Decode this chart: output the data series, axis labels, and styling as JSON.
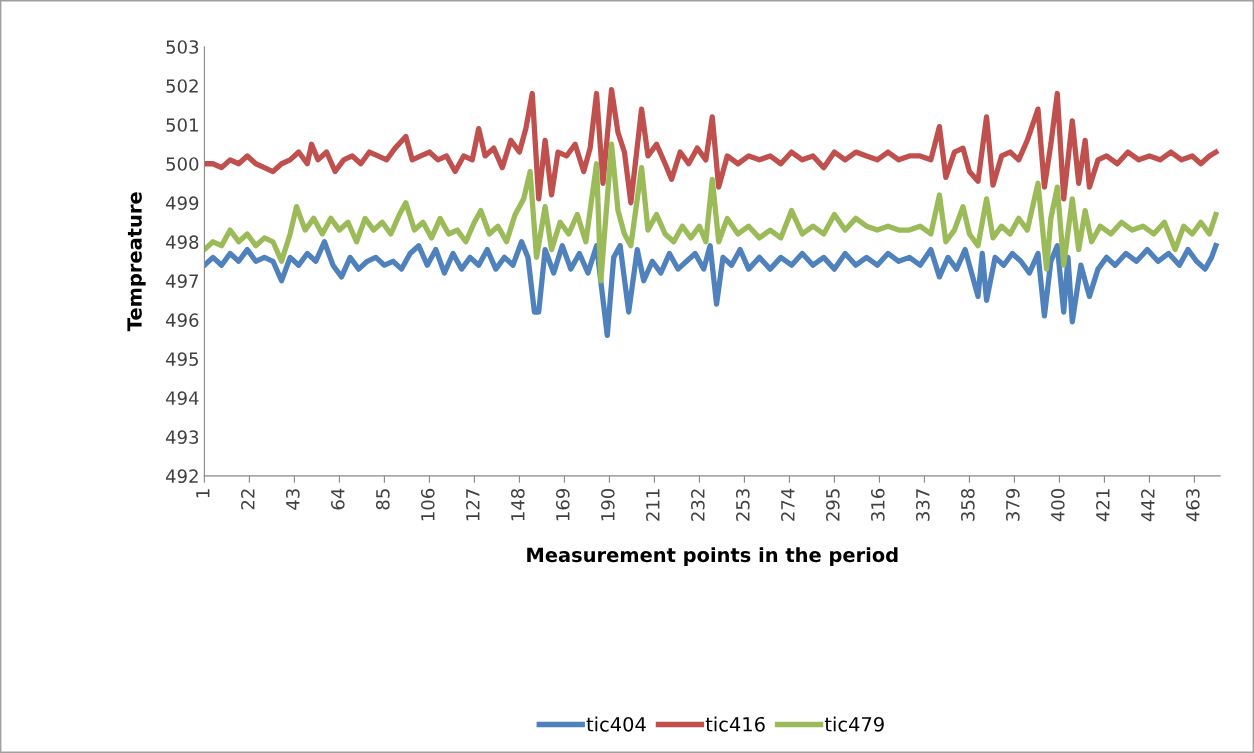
{
  "chart_data": {
    "type": "line",
    "xlabel": "Measurement points in the period",
    "ylabel": "Tempreature",
    "xlim": [
      1,
      475
    ],
    "xticks": [
      1,
      22,
      43,
      64,
      85,
      106,
      127,
      148,
      169,
      190,
      211,
      232,
      253,
      274,
      295,
      316,
      337,
      358,
      379,
      400,
      421,
      442,
      463
    ],
    "ylim": [
      492,
      503
    ],
    "yticks": [
      492,
      493,
      494,
      495,
      496,
      497,
      498,
      499,
      500,
      501,
      502,
      503
    ],
    "grid": false,
    "legend": "bottom",
    "marker": "none",
    "line_style": "solid",
    "series": [
      {
        "name": "tic404",
        "color": "#4f81bd",
        "x": [
          1,
          5,
          9,
          13,
          17,
          21,
          25,
          29,
          33,
          37,
          41,
          45,
          49,
          53,
          57,
          61,
          65,
          69,
          73,
          77,
          81,
          85,
          89,
          93,
          97,
          101,
          105,
          109,
          113,
          117,
          121,
          125,
          129,
          133,
          137,
          141,
          145,
          149,
          152,
          155,
          157,
          160,
          164,
          168,
          172,
          176,
          180,
          184,
          189,
          192,
          195,
          199,
          203,
          206,
          210,
          214,
          218,
          222,
          226,
          230,
          234,
          237,
          240,
          243,
          247,
          251,
          255,
          260,
          265,
          270,
          275,
          280,
          285,
          290,
          295,
          300,
          305,
          310,
          315,
          320,
          325,
          330,
          335,
          340,
          344,
          348,
          352,
          356,
          359,
          362,
          364,
          366,
          370,
          374,
          378,
          382,
          386,
          390,
          393,
          396,
          399,
          402,
          404,
          406,
          410,
          414,
          418,
          422,
          426,
          431,
          436,
          441,
          446,
          451,
          456,
          460,
          464,
          468,
          471,
          473
        ],
        "values": [
          497.4,
          497.6,
          497.4,
          497.7,
          497.5,
          497.8,
          497.5,
          497.6,
          497.5,
          497.0,
          497.6,
          497.4,
          497.7,
          497.5,
          498.0,
          497.4,
          497.1,
          497.6,
          497.3,
          497.5,
          497.6,
          497.4,
          497.5,
          497.3,
          497.7,
          497.9,
          497.4,
          497.8,
          497.2,
          497.7,
          497.3,
          497.6,
          497.4,
          497.8,
          497.3,
          497.6,
          497.4,
          498.0,
          497.6,
          496.2,
          496.2,
          497.8,
          497.2,
          497.9,
          497.3,
          497.7,
          497.2,
          497.9,
          495.6,
          497.6,
          497.9,
          496.2,
          497.8,
          497.0,
          497.5,
          497.2,
          497.7,
          497.3,
          497.5,
          497.7,
          497.3,
          497.9,
          496.4,
          497.6,
          497.4,
          497.8,
          497.3,
          497.6,
          497.3,
          497.6,
          497.4,
          497.7,
          497.4,
          497.6,
          497.3,
          497.7,
          497.4,
          497.6,
          497.4,
          497.7,
          497.5,
          497.6,
          497.4,
          497.8,
          497.1,
          497.6,
          497.3,
          497.8,
          497.2,
          496.6,
          497.7,
          496.5,
          497.6,
          497.4,
          497.7,
          497.5,
          497.2,
          497.7,
          496.1,
          497.5,
          497.9,
          496.2,
          497.6,
          495.95,
          497.4,
          496.6,
          497.3,
          497.6,
          497.4,
          497.7,
          497.5,
          497.8,
          497.5,
          497.7,
          497.4,
          497.8,
          497.5,
          497.3,
          497.6,
          497.9
        ]
      },
      {
        "name": "tic416",
        "color": "#c0504d",
        "x": [
          1,
          5,
          9,
          13,
          17,
          21,
          25,
          29,
          33,
          37,
          41,
          45,
          49,
          51,
          54,
          58,
          62,
          66,
          70,
          74,
          78,
          82,
          86,
          90,
          95,
          98,
          102,
          106,
          110,
          114,
          118,
          122,
          126,
          129,
          132,
          136,
          140,
          144,
          148,
          151,
          154,
          157,
          160,
          163,
          166,
          170,
          174,
          178,
          181,
          184,
          187,
          191,
          194,
          197,
          200,
          205,
          208,
          212,
          216,
          219,
          223,
          227,
          231,
          235,
          238,
          241,
          245,
          250,
          255,
          260,
          265,
          270,
          275,
          280,
          285,
          290,
          295,
          300,
          305,
          310,
          315,
          320,
          325,
          330,
          335,
          340,
          344,
          347,
          351,
          355,
          358,
          362,
          366,
          369,
          373,
          377,
          381,
          385,
          390,
          393,
          396,
          399,
          402,
          406,
          409,
          412,
          414,
          418,
          422,
          427,
          432,
          437,
          442,
          447,
          452,
          457,
          462,
          466,
          470,
          473
        ],
        "values": [
          500.0,
          500.0,
          499.9,
          500.1,
          500.0,
          500.2,
          500.0,
          499.9,
          499.8,
          500.0,
          500.1,
          500.3,
          500.0,
          500.5,
          500.1,
          500.3,
          499.8,
          500.1,
          500.2,
          500.0,
          500.3,
          500.2,
          500.1,
          500.4,
          500.7,
          500.1,
          500.2,
          500.3,
          500.1,
          500.2,
          499.8,
          500.2,
          500.1,
          500.9,
          500.2,
          500.4,
          499.9,
          500.6,
          500.3,
          500.9,
          501.8,
          499.1,
          500.6,
          499.2,
          500.3,
          500.2,
          500.5,
          499.8,
          500.4,
          501.8,
          499.5,
          501.9,
          500.8,
          500.3,
          499.0,
          501.4,
          500.2,
          500.5,
          500.0,
          499.6,
          500.3,
          500.0,
          500.4,
          500.1,
          501.2,
          499.4,
          500.2,
          500.0,
          500.2,
          500.1,
          500.2,
          500.0,
          500.3,
          500.1,
          500.2,
          499.9,
          500.3,
          500.1,
          500.3,
          500.2,
          500.1,
          500.3,
          500.1,
          500.2,
          500.2,
          500.1,
          500.95,
          499.65,
          500.3,
          500.4,
          499.8,
          499.55,
          501.2,
          499.45,
          500.2,
          500.3,
          500.1,
          500.6,
          501.4,
          499.4,
          500.5,
          501.8,
          499.1,
          501.1,
          499.5,
          500.6,
          499.4,
          500.1,
          500.2,
          500.0,
          500.3,
          500.1,
          500.2,
          500.1,
          500.3,
          500.1,
          500.2,
          500.0,
          500.2,
          500.3
        ]
      },
      {
        "name": "tic479",
        "color": "#9bbb59",
        "x": [
          1,
          5,
          9,
          13,
          17,
          21,
          25,
          29,
          33,
          37,
          41,
          44,
          48,
          52,
          56,
          60,
          64,
          68,
          72,
          76,
          80,
          84,
          88,
          92,
          95,
          99,
          103,
          107,
          111,
          115,
          119,
          123,
          127,
          130,
          134,
          138,
          142,
          146,
          150,
          153,
          156,
          160,
          163,
          167,
          171,
          175,
          179,
          184,
          186,
          191,
          194,
          197,
          200,
          205,
          208,
          212,
          216,
          220,
          224,
          228,
          232,
          235,
          238,
          241,
          245,
          250,
          255,
          260,
          265,
          270,
          275,
          280,
          285,
          290,
          295,
          300,
          305,
          310,
          315,
          320,
          325,
          330,
          335,
          340,
          344,
          347,
          351,
          355,
          358,
          362,
          366,
          369,
          373,
          377,
          381,
          385,
          390,
          394,
          396,
          399,
          402,
          406,
          409,
          412,
          415,
          419,
          424,
          429,
          434,
          439,
          444,
          449,
          454,
          458,
          462,
          466,
          470,
          473
        ],
        "values": [
          497.8,
          498.0,
          497.9,
          498.3,
          498.0,
          498.2,
          497.9,
          498.1,
          498.0,
          497.5,
          498.2,
          498.9,
          498.3,
          498.6,
          498.2,
          498.6,
          498.3,
          498.5,
          498.0,
          498.6,
          498.3,
          498.5,
          498.2,
          498.7,
          499.0,
          498.3,
          498.5,
          498.1,
          498.6,
          498.2,
          498.3,
          498.0,
          498.5,
          498.8,
          498.2,
          498.4,
          498.0,
          498.7,
          499.1,
          499.8,
          497.6,
          498.9,
          497.8,
          498.5,
          498.2,
          498.7,
          498.0,
          500.0,
          497.0,
          500.5,
          498.8,
          498.2,
          497.9,
          499.9,
          498.3,
          498.7,
          498.2,
          498.0,
          498.4,
          498.1,
          498.4,
          498.0,
          499.6,
          498.0,
          498.6,
          498.2,
          498.4,
          498.1,
          498.3,
          498.1,
          498.8,
          498.2,
          498.4,
          498.2,
          498.7,
          498.3,
          498.6,
          498.4,
          498.3,
          498.4,
          498.3,
          498.3,
          498.4,
          498.2,
          499.2,
          498.0,
          498.3,
          498.9,
          498.2,
          497.9,
          499.1,
          498.1,
          498.4,
          498.2,
          498.6,
          498.3,
          499.5,
          497.3,
          498.6,
          499.4,
          497.4,
          499.1,
          497.8,
          498.8,
          498.0,
          498.4,
          498.2,
          498.5,
          498.3,
          498.4,
          498.2,
          498.5,
          497.8,
          498.4,
          498.2,
          498.5,
          498.2,
          498.7
        ]
      }
    ]
  }
}
